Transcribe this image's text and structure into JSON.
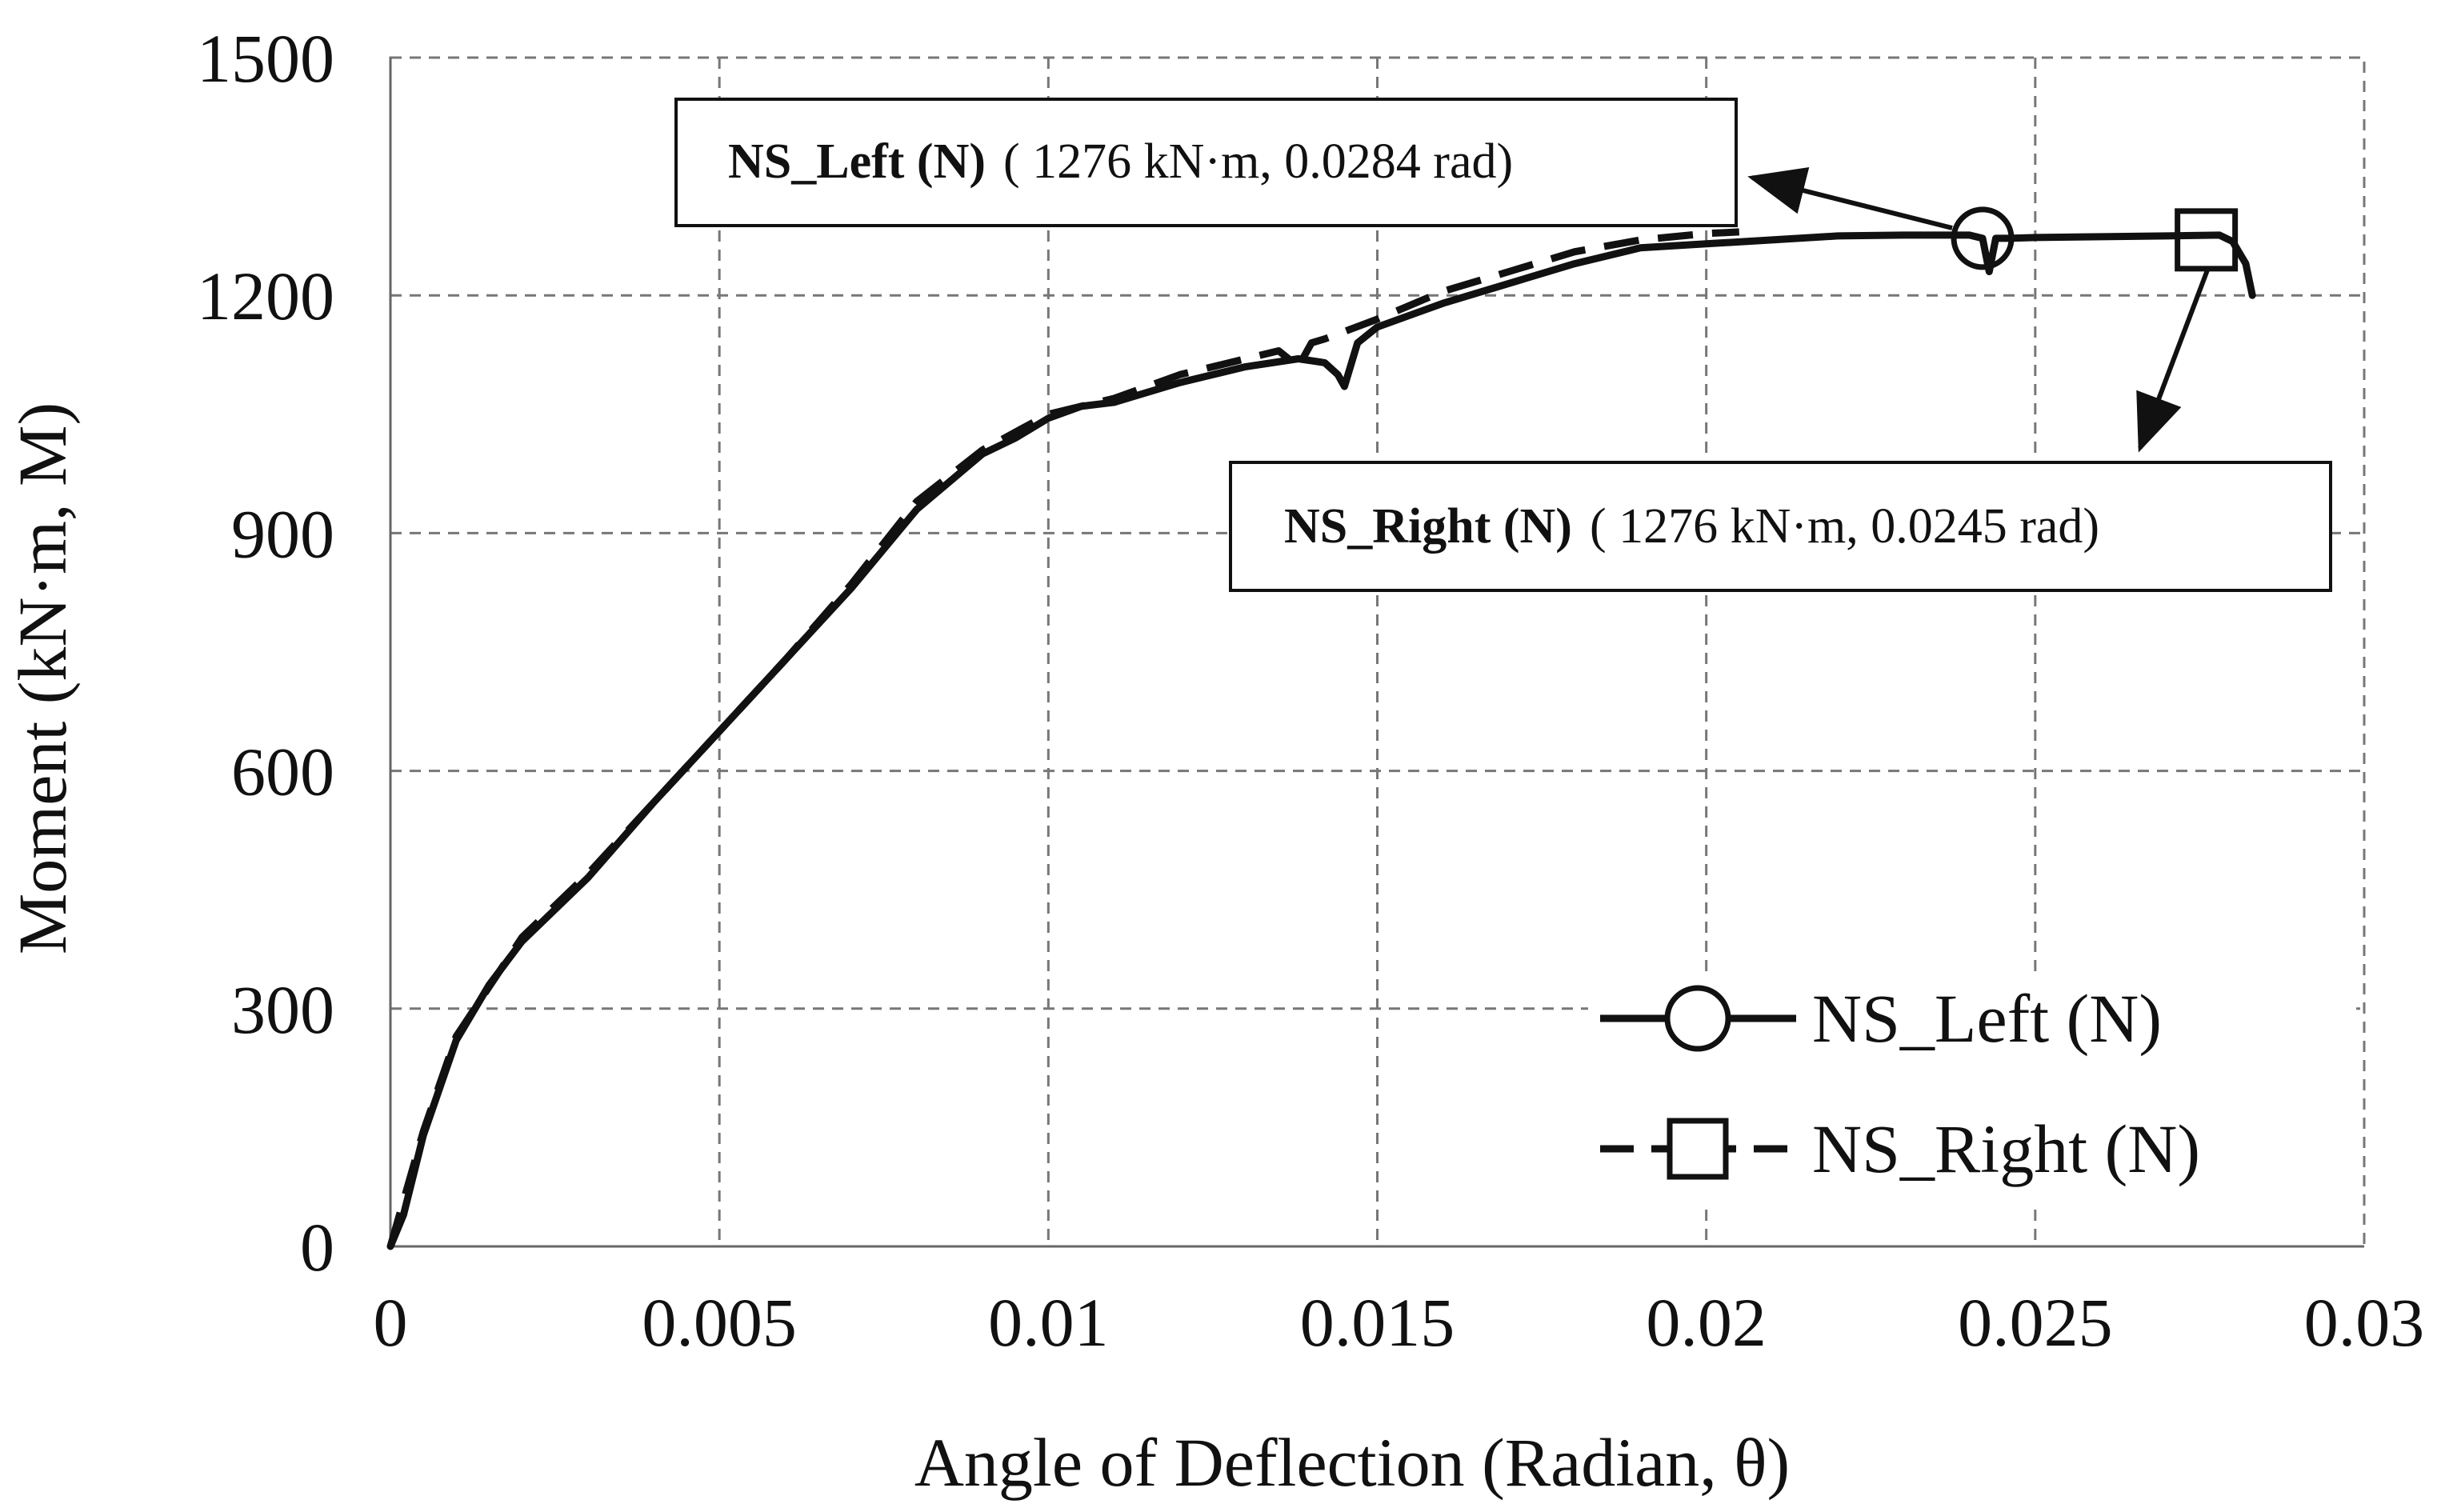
{
  "chart_data": {
    "type": "line",
    "title": "",
    "xlabel": "Angle of Deflection (Radian, θ)",
    "ylabel": "Moment (kN·m, M)",
    "xlim": [
      0,
      0.03
    ],
    "ylim": [
      0,
      1500
    ],
    "x_ticks": [
      0,
      0.005,
      0.01,
      0.015,
      0.02,
      0.025,
      0.03
    ],
    "x_tick_labels": [
      "0",
      "0.005",
      "0.01",
      "0.015",
      "0.02",
      "0.025",
      "0.03"
    ],
    "y_ticks": [
      0,
      300,
      600,
      900,
      1200,
      1500
    ],
    "y_tick_labels": [
      "0",
      "300",
      "600",
      "900",
      "1200",
      "1500"
    ],
    "grid": true,
    "legend_position": "bottom-right",
    "series": [
      {
        "name": "NS_Left (N)",
        "line_style": "solid",
        "marker": "circle",
        "marker_point": [
          0.0242,
          1272
        ],
        "x": [
          0,
          0.0002,
          0.0005,
          0.001,
          0.0015,
          0.002,
          0.003,
          0.004,
          0.005,
          0.006,
          0.007,
          0.008,
          0.009,
          0.0095,
          0.01,
          0.0105,
          0.011,
          0.012,
          0.013,
          0.0138,
          0.0142,
          0.0144,
          0.0145,
          0.0147,
          0.015,
          0.016,
          0.017,
          0.018,
          0.019,
          0.02,
          0.021,
          0.022,
          0.023,
          0.024,
          0.0242,
          0.0243,
          0.0244,
          0.0246,
          0.025,
          0.026,
          0.027,
          0.0278,
          0.028,
          0.0282,
          0.0283
        ],
        "y": [
          0,
          40,
          140,
          260,
          330,
          385,
          465,
          560,
          650,
          740,
          830,
          930,
          1000,
          1020,
          1045,
          1060,
          1065,
          1090,
          1110,
          1120,
          1115,
          1100,
          1085,
          1140,
          1160,
          1190,
          1215,
          1240,
          1260,
          1265,
          1270,
          1275,
          1276,
          1276,
          1272,
          1230,
          1272,
          1272,
          1273,
          1274,
          1275,
          1276,
          1268,
          1240,
          1200
        ]
      },
      {
        "name": "NS_Right (N)",
        "line_style": "dashed",
        "marker": "square",
        "marker_point": [
          0.0276,
          1270
        ],
        "x": [
          0,
          0.0005,
          0.001,
          0.002,
          0.003,
          0.004,
          0.005,
          0.006,
          0.007,
          0.008,
          0.009,
          0.01,
          0.011,
          0.012,
          0.013,
          0.0135,
          0.0138,
          0.014,
          0.0142,
          0.015,
          0.016,
          0.017,
          0.018,
          0.019,
          0.02,
          0.0205
        ],
        "y": [
          0,
          145,
          265,
          390,
          470,
          560,
          650,
          740,
          835,
          940,
          1005,
          1050,
          1070,
          1100,
          1120,
          1130,
          1110,
          1140,
          1145,
          1170,
          1205,
          1230,
          1255,
          1270,
          1278,
          1280
        ]
      }
    ],
    "annotations": [
      {
        "series": "NS_Left (N)",
        "name_label": "NS_Left (N)",
        "value_label": "( 1276 kN·m, 0.0284 rad)"
      },
      {
        "series": "NS_Right (N)",
        "name_label": "NS_Right (N)",
        "value_label": "( 1276 kN·m, 0.0245 rad)"
      }
    ]
  }
}
